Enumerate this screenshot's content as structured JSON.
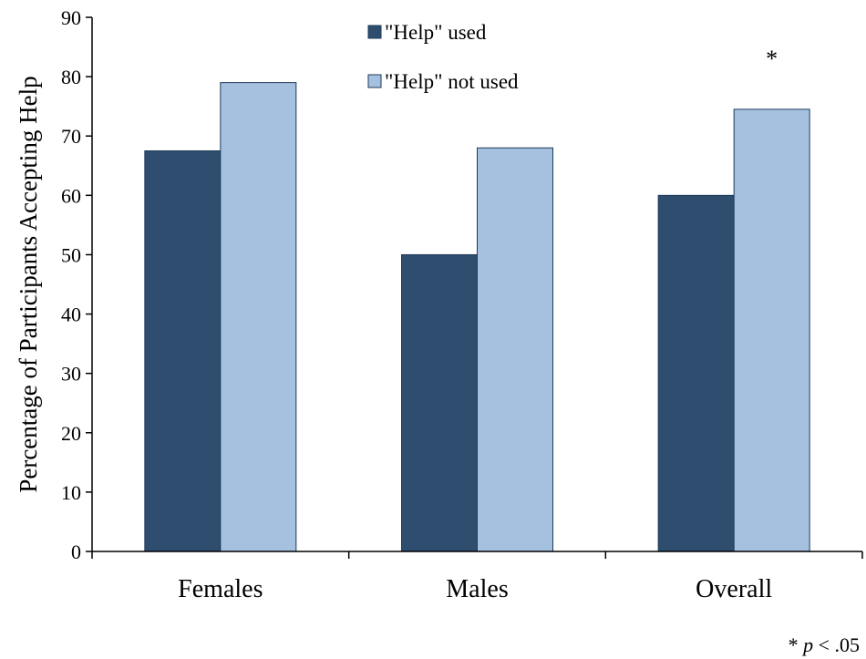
{
  "chart_data": {
    "type": "bar",
    "categories": [
      "Females",
      "Males",
      "Overall"
    ],
    "series": [
      {
        "name": "\"Help\" used",
        "values": [
          67.5,
          50,
          60
        ],
        "color": "#2E4D6F"
      },
      {
        "name": "\"Help\" not used",
        "values": [
          79,
          68,
          74.5
        ],
        "color": "#A6C1E0"
      }
    ],
    "ylabel": "Percentage of Participants Accepting Help",
    "xlabel": "",
    "ylim": [
      0,
      90
    ],
    "yticks": [
      0,
      10,
      20,
      30,
      40,
      50,
      60,
      70,
      80,
      90
    ],
    "grid": false,
    "legend_position": "top-center",
    "annotations": [
      {
        "text": "*",
        "category": "Overall"
      }
    ],
    "footnote": {
      "prefix": "* ",
      "italic": "p",
      "suffix": " < .05"
    }
  },
  "colors": {
    "bar_outline": "#1F3A5A",
    "axis": "#000000"
  }
}
